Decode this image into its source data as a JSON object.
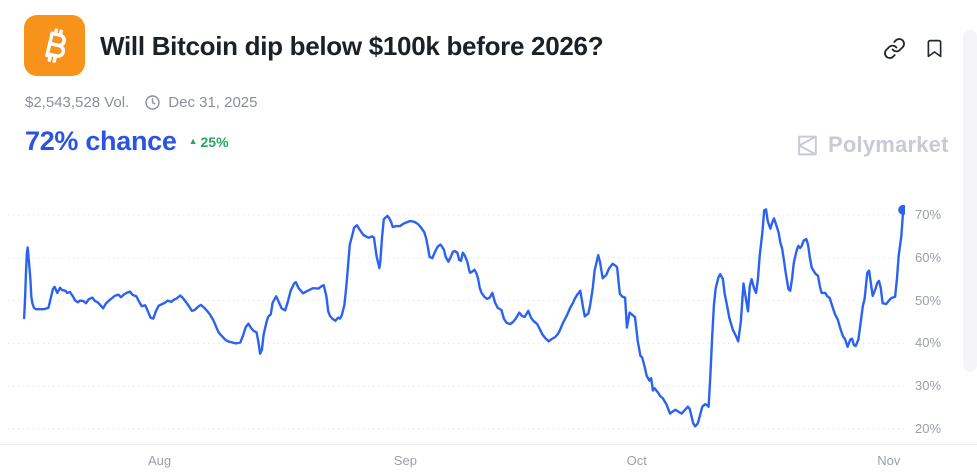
{
  "header": {
    "title": "Will Bitcoin dip below $100k before 2026?",
    "icon": "bitcoin-icon",
    "actions": [
      {
        "name": "copy-link",
        "icon": "link-icon"
      },
      {
        "name": "bookmark",
        "icon": "bookmark-icon"
      }
    ]
  },
  "meta": {
    "volume": "$2,543,528 Vol.",
    "end_date_icon": "clock-icon",
    "end_date": "Dec 31, 2025"
  },
  "probability": {
    "chance": "72% chance",
    "direction": "up",
    "change": "25%",
    "up_triangle": "▲"
  },
  "watermark": {
    "icon": "polymarket-logo-icon",
    "label": "Polymarket"
  },
  "colors": {
    "accent_blue": "#2b55e0",
    "line_blue": "#2b63f0",
    "positive_green": "#27a562",
    "bitcoin_orange": "#F7931A",
    "muted_text": "#8a9098",
    "tick_text": "#9aa0a8",
    "watermark_gray": "#c8cad4",
    "grid_gray": "#dcdfe5"
  },
  "chart_data": {
    "type": "line",
    "title": "",
    "series_label": "chance",
    "unit": "%",
    "current_value": 72,
    "ylim": [
      15,
      75
    ],
    "yticks": [
      70,
      60,
      50,
      40,
      30,
      20
    ],
    "ytick_labels": [
      "70%",
      "60%",
      "50%",
      "40%",
      "30%",
      "20%"
    ],
    "x_categories": [
      "Aug",
      "Sep",
      "Oct",
      "Nov"
    ],
    "x_category_positions": [
      16.9,
      44.3,
      70.1,
      98.2
    ],
    "grid": "horizontal-dotted",
    "legend": "none",
    "end_dot": true,
    "points": [
      [
        1.8,
        45.9
      ],
      [
        1.9,
        50
      ],
      [
        2.0,
        56
      ],
      [
        2.1,
        61
      ],
      [
        2.2,
        62.4
      ],
      [
        2.3,
        60
      ],
      [
        2.5,
        55
      ],
      [
        2.6,
        51
      ],
      [
        2.7,
        49.5
      ],
      [
        2.9,
        48.3
      ],
      [
        3.1,
        48
      ],
      [
        3.6,
        48
      ],
      [
        4.0,
        48
      ],
      [
        4.5,
        48.3
      ],
      [
        4.7,
        50
      ],
      [
        5.0,
        52.7
      ],
      [
        5.2,
        53.2
      ],
      [
        5.5,
        51.8
      ],
      [
        5.8,
        53
      ],
      [
        6.0,
        52.5
      ],
      [
        6.4,
        52.3
      ],
      [
        6.6,
        51.8
      ],
      [
        6.9,
        52
      ],
      [
        7.2,
        51.1
      ],
      [
        7.5,
        50
      ],
      [
        7.8,
        49.6
      ],
      [
        8.0,
        50
      ],
      [
        8.4,
        49.9
      ],
      [
        8.7,
        49.4
      ],
      [
        9.0,
        50.3
      ],
      [
        9.4,
        50.7
      ],
      [
        9.7,
        49.9
      ],
      [
        10.0,
        49.6
      ],
      [
        10.4,
        48.7
      ],
      [
        10.6,
        48.2
      ],
      [
        10.9,
        49.3
      ],
      [
        11.3,
        50.1
      ],
      [
        11.6,
        50.6
      ],
      [
        11.9,
        51.1
      ],
      [
        12.3,
        51.4
      ],
      [
        12.6,
        50.8
      ],
      [
        12.9,
        51.4
      ],
      [
        13.3,
        51.9
      ],
      [
        13.6,
        52.1
      ],
      [
        13.9,
        51.3
      ],
      [
        14.3,
        51
      ],
      [
        14.6,
        49.8
      ],
      [
        14.9,
        48.7
      ],
      [
        15.3,
        48.9
      ],
      [
        15.6,
        47.5
      ],
      [
        15.9,
        46
      ],
      [
        16.2,
        45.8
      ],
      [
        16.5,
        47.6
      ],
      [
        16.8,
        48.8
      ],
      [
        17.2,
        49.2
      ],
      [
        17.5,
        49.5
      ],
      [
        17.8,
        50
      ],
      [
        18.2,
        49.7
      ],
      [
        18.5,
        50.2
      ],
      [
        18.8,
        50.5
      ],
      [
        19.2,
        51.2
      ],
      [
        19.5,
        50.6
      ],
      [
        19.8,
        49.8
      ],
      [
        20.2,
        48.6
      ],
      [
        20.5,
        47.6
      ],
      [
        20.8,
        47.8
      ],
      [
        21.2,
        48.6
      ],
      [
        21.5,
        49
      ],
      [
        21.9,
        48.3
      ],
      [
        22.2,
        47.6
      ],
      [
        22.5,
        46.8
      ],
      [
        22.9,
        45.4
      ],
      [
        23.2,
        43.9
      ],
      [
        23.5,
        42.5
      ],
      [
        23.9,
        41.6
      ],
      [
        24.2,
        40.9
      ],
      [
        24.5,
        40.5
      ],
      [
        25.0,
        40.2
      ],
      [
        25.4,
        40
      ],
      [
        25.9,
        40.2
      ],
      [
        26.2,
        41.8
      ],
      [
        26.5,
        43.8
      ],
      [
        26.8,
        44.6
      ],
      [
        27.1,
        43.6
      ],
      [
        27.4,
        42.9
      ],
      [
        27.7,
        42.6
      ],
      [
        27.9,
        40.5
      ],
      [
        28.1,
        37.6
      ],
      [
        28.3,
        38.5
      ],
      [
        28.5,
        42
      ],
      [
        28.8,
        44.8
      ],
      [
        29.0,
        46.2
      ],
      [
        29.3,
        46.8
      ],
      [
        29.5,
        49.5
      ],
      [
        29.9,
        51
      ],
      [
        30.2,
        49.6
      ],
      [
        30.5,
        48.2
      ],
      [
        30.9,
        47.7
      ],
      [
        31.2,
        49.8
      ],
      [
        31.5,
        52.3
      ],
      [
        31.9,
        54
      ],
      [
        32.1,
        54.3
      ],
      [
        32.4,
        52.9
      ],
      [
        32.9,
        51.7
      ],
      [
        33.4,
        52.3
      ],
      [
        34.0,
        52.9
      ],
      [
        34.6,
        52.8
      ],
      [
        35.0,
        53.4
      ],
      [
        35.2,
        53.6
      ],
      [
        35.5,
        51
      ],
      [
        35.7,
        47.5
      ],
      [
        35.9,
        46.4
      ],
      [
        36.2,
        45.7
      ],
      [
        36.5,
        45.3
      ],
      [
        36.8,
        46
      ],
      [
        37.0,
        45.8
      ],
      [
        37.2,
        46.5
      ],
      [
        37.5,
        49
      ],
      [
        37.7,
        53
      ],
      [
        37.9,
        58
      ],
      [
        38.1,
        63.1
      ],
      [
        38.4,
        65.4
      ],
      [
        38.6,
        67.1
      ],
      [
        38.9,
        67.6
      ],
      [
        39.2,
        66.6
      ],
      [
        39.6,
        65.4
      ],
      [
        39.9,
        65
      ],
      [
        40.2,
        64.7
      ],
      [
        40.6,
        65
      ],
      [
        40.8,
        64.7
      ],
      [
        40.9,
        63.1
      ],
      [
        41.1,
        60.2
      ],
      [
        41.4,
        57.6
      ],
      [
        41.5,
        59.1
      ],
      [
        41.7,
        64.7
      ],
      [
        41.9,
        69
      ],
      [
        42.3,
        69.8
      ],
      [
        42.5,
        69.3
      ],
      [
        42.7,
        68.4
      ],
      [
        42.9,
        67.2
      ],
      [
        43.3,
        67.4
      ],
      [
        43.7,
        67.4
      ],
      [
        44.1,
        68
      ],
      [
        44.6,
        68.4
      ],
      [
        44.8,
        68.6
      ],
      [
        45.3,
        68.4
      ],
      [
        45.7,
        67.9
      ],
      [
        46.0,
        67.2
      ],
      [
        46.4,
        66
      ],
      [
        46.6,
        64.7
      ],
      [
        46.8,
        62.6
      ],
      [
        47.0,
        60.2
      ],
      [
        47.3,
        59.9
      ],
      [
        47.6,
        61.4
      ],
      [
        47.9,
        62.6
      ],
      [
        48.2,
        63.1
      ],
      [
        48.4,
        62.6
      ],
      [
        48.6,
        61.9
      ],
      [
        48.8,
        60.2
      ],
      [
        49.1,
        59.1
      ],
      [
        49.3,
        59.9
      ],
      [
        49.6,
        61.4
      ],
      [
        49.8,
        61.6
      ],
      [
        50.1,
        61.2
      ],
      [
        50.3,
        59.5
      ],
      [
        50.5,
        59.3
      ],
      [
        50.7,
        61.2
      ],
      [
        50.9,
        60.6
      ],
      [
        51.2,
        59.1
      ],
      [
        51.4,
        57.2
      ],
      [
        51.5,
        56.5
      ],
      [
        51.7,
        56.7
      ],
      [
        52.0,
        57.2
      ],
      [
        52.2,
        56.5
      ],
      [
        52.4,
        55.2
      ],
      [
        52.6,
        52.9
      ],
      [
        52.8,
        51.8
      ],
      [
        53.1,
        50.9
      ],
      [
        53.4,
        50.4
      ],
      [
        53.7,
        50.7
      ],
      [
        54.0,
        51.8
      ],
      [
        54.3,
        49.5
      ],
      [
        54.6,
        48.3
      ],
      [
        55.0,
        47.8
      ],
      [
        55.3,
        45.7
      ],
      [
        55.6,
        44.8
      ],
      [
        56.0,
        44.5
      ],
      [
        56.3,
        45
      ],
      [
        56.6,
        45.8
      ],
      [
        57.0,
        47.2
      ],
      [
        57.3,
        46.4
      ],
      [
        57.6,
        46.2
      ],
      [
        58.0,
        47.6
      ],
      [
        58.3,
        46
      ],
      [
        58.6,
        45.2
      ],
      [
        59.0,
        44.5
      ],
      [
        59.3,
        43.3
      ],
      [
        59.6,
        42
      ],
      [
        60.0,
        41
      ],
      [
        60.3,
        40.5
      ],
      [
        60.6,
        41
      ],
      [
        61.0,
        41.5
      ],
      [
        61.3,
        42.2
      ],
      [
        61.5,
        43
      ],
      [
        61.9,
        44.9
      ],
      [
        62.3,
        46.5
      ],
      [
        62.7,
        48.4
      ],
      [
        63.0,
        49.5
      ],
      [
        63.2,
        50.5
      ],
      [
        63.5,
        51.5
      ],
      [
        63.8,
        52.3
      ],
      [
        64.1,
        48.5
      ],
      [
        64.3,
        46.3
      ],
      [
        64.7,
        47
      ],
      [
        64.9,
        49
      ],
      [
        65.2,
        53
      ],
      [
        65.4,
        57
      ],
      [
        65.8,
        60.6
      ],
      [
        66.0,
        59
      ],
      [
        66.3,
        55.2
      ],
      [
        66.7,
        56
      ],
      [
        67.0,
        57.5
      ],
      [
        67.4,
        58.6
      ],
      [
        67.7,
        58.2
      ],
      [
        67.9,
        57.8
      ],
      [
        68.2,
        51.6
      ],
      [
        68.5,
        50.9
      ],
      [
        68.8,
        50.7
      ],
      [
        69.0,
        43.7
      ],
      [
        69.3,
        47.2
      ],
      [
        69.7,
        46.5
      ],
      [
        69.9,
        46.1
      ],
      [
        70.2,
        40.6
      ],
      [
        70.5,
        37.1
      ],
      [
        70.7,
        36.7
      ],
      [
        71.0,
        34.3
      ],
      [
        71.2,
        32.4
      ],
      [
        71.5,
        31.3
      ],
      [
        71.7,
        31.9
      ],
      [
        71.9,
        29
      ],
      [
        72.1,
        29.5
      ],
      [
        72.5,
        28.4
      ],
      [
        72.7,
        27.7
      ],
      [
        73.0,
        27.2
      ],
      [
        73.4,
        25.8
      ],
      [
        73.8,
        23.6
      ],
      [
        74.1,
        24.1
      ],
      [
        74.4,
        24.5
      ],
      [
        74.7,
        24.1
      ],
      [
        75.1,
        23.6
      ],
      [
        75.5,
        24.5
      ],
      [
        75.8,
        25.2
      ],
      [
        76.0,
        24.7
      ],
      [
        76.4,
        21.3
      ],
      [
        76.6,
        20.6
      ],
      [
        76.9,
        21.3
      ],
      [
        77.4,
        25.2
      ],
      [
        77.7,
        25.8
      ],
      [
        77.9,
        25.6
      ],
      [
        78.1,
        25.2
      ],
      [
        78.3,
        32.7
      ],
      [
        78.5,
        41.2
      ],
      [
        78.7,
        48.9
      ],
      [
        78.9,
        52.9
      ],
      [
        79.2,
        55.4
      ],
      [
        79.4,
        56.2
      ],
      [
        79.7,
        55
      ],
      [
        79.9,
        51.6
      ],
      [
        80.2,
        48.4
      ],
      [
        80.4,
        46.1
      ],
      [
        80.6,
        44.6
      ],
      [
        80.8,
        43.2
      ],
      [
        81.2,
        41.5
      ],
      [
        81.4,
        40.5
      ],
      [
        81.7,
        45
      ],
      [
        82.0,
        54
      ],
      [
        82.3,
        50
      ],
      [
        82.5,
        47.5
      ],
      [
        82.7,
        53.4
      ],
      [
        82.9,
        55
      ],
      [
        83.2,
        52.7
      ],
      [
        83.4,
        51.8
      ],
      [
        83.6,
        55
      ],
      [
        83.8,
        60.5
      ],
      [
        84.1,
        66
      ],
      [
        84.3,
        71.1
      ],
      [
        84.5,
        71.3
      ],
      [
        84.7,
        68.5
      ],
      [
        85.0,
        66.8
      ],
      [
        85.2,
        68.2
      ],
      [
        85.4,
        69.2
      ],
      [
        85.6,
        68
      ],
      [
        85.9,
        66
      ],
      [
        86.1,
        63.6
      ],
      [
        86.3,
        62.2
      ],
      [
        86.5,
        59.5
      ],
      [
        86.7,
        56.5
      ],
      [
        87.0,
        52.7
      ],
      [
        87.2,
        52.3
      ],
      [
        87.4,
        55
      ],
      [
        87.6,
        58.8
      ],
      [
        87.9,
        61.6
      ],
      [
        88.1,
        62.8
      ],
      [
        88.3,
        62.3
      ],
      [
        88.5,
        62.8
      ],
      [
        88.7,
        64
      ],
      [
        89.0,
        64.4
      ],
      [
        89.2,
        63
      ],
      [
        89.4,
        60
      ],
      [
        89.6,
        57.7
      ],
      [
        90.0,
        56.3
      ],
      [
        90.3,
        55.8
      ],
      [
        90.5,
        53.4
      ],
      [
        90.7,
        51.8
      ],
      [
        91.1,
        51.8
      ],
      [
        91.3,
        51.1
      ],
      [
        91.6,
        50.6
      ],
      [
        91.9,
        48.7
      ],
      [
        92.2,
        46.8
      ],
      [
        92.5,
        45.6
      ],
      [
        92.8,
        43.4
      ],
      [
        93.1,
        41.6
      ],
      [
        93.3,
        41.1
      ],
      [
        93.6,
        39.2
      ],
      [
        93.9,
        40.9
      ],
      [
        94.1,
        41.1
      ],
      [
        94.3,
        39.6
      ],
      [
        94.5,
        39.4
      ],
      [
        94.8,
        40.9
      ],
      [
        95.0,
        43.9
      ],
      [
        95.3,
        48.7
      ],
      [
        95.5,
        50.4
      ],
      [
        95.8,
        56.5
      ],
      [
        96.0,
        57
      ],
      [
        96.2,
        54
      ],
      [
        96.4,
        51.1
      ],
      [
        96.7,
        52.7
      ],
      [
        96.9,
        54.1
      ],
      [
        97.1,
        54.6
      ],
      [
        97.3,
        52.9
      ],
      [
        97.5,
        49.4
      ],
      [
        97.9,
        49.2
      ],
      [
        98.2,
        50
      ],
      [
        98.5,
        50.6
      ],
      [
        98.9,
        50.9
      ],
      [
        99.1,
        55
      ],
      [
        99.3,
        60.5
      ],
      [
        99.6,
        65.2
      ],
      [
        99.8,
        71.2
      ]
    ]
  }
}
